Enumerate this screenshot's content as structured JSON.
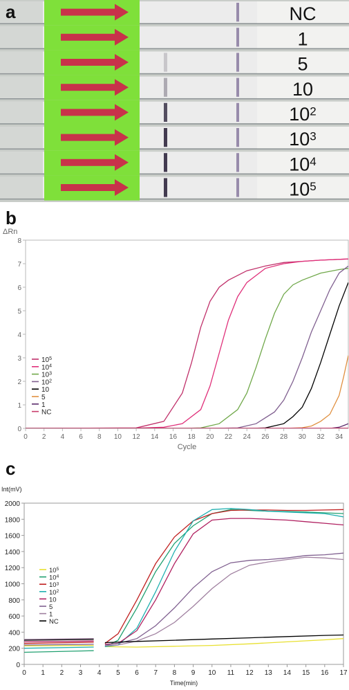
{
  "panel_a": {
    "label": "a",
    "strip_labels": [
      {
        "base": "NC",
        "exp": ""
      },
      {
        "base": "1",
        "exp": ""
      },
      {
        "base": "5",
        "exp": ""
      },
      {
        "base": "10",
        "exp": ""
      },
      {
        "base": "10",
        "exp": "2"
      },
      {
        "base": "10",
        "exp": "3"
      },
      {
        "base": "10",
        "exp": "4"
      },
      {
        "base": "10",
        "exp": "5"
      }
    ],
    "test_line_intensity": [
      0,
      0,
      0.2,
      0.35,
      0.85,
      0.95,
      0.95,
      0.95
    ],
    "colors": {
      "pad": "#7fe03a",
      "arrow": "#c8324a",
      "strip": "#ececec"
    }
  },
  "panel_b": {
    "label": "b",
    "chart_data": {
      "type": "line",
      "ylabel": "ΔRn",
      "xlabel": "Cycle",
      "xlim": [
        0,
        35
      ],
      "ylim": [
        0,
        8
      ],
      "xticks": [
        0,
        2,
        4,
        6,
        8,
        10,
        12,
        14,
        16,
        18,
        20,
        22,
        24,
        26,
        28,
        30,
        32,
        34
      ],
      "yticks": [
        0,
        1,
        2,
        3,
        4,
        5,
        6,
        7,
        8
      ],
      "grid": false,
      "legend_position": "left",
      "series": [
        {
          "name": "10",
          "exp": "5",
          "color": "#c0306a",
          "points": [
            [
              0,
              0
            ],
            [
              12,
              0.02
            ],
            [
              15,
              0.3
            ],
            [
              17,
              1.5
            ],
            [
              18,
              2.8
            ],
            [
              19,
              4.3
            ],
            [
              20,
              5.4
            ],
            [
              21,
              6.0
            ],
            [
              22,
              6.3
            ],
            [
              24,
              6.7
            ],
            [
              26,
              6.9
            ],
            [
              28,
              7.05
            ],
            [
              30,
              7.1
            ],
            [
              32,
              7.15
            ],
            [
              35,
              7.2
            ]
          ]
        },
        {
          "name": "10",
          "exp": "4",
          "color": "#e0307a",
          "points": [
            [
              0,
              0
            ],
            [
              12,
              0.01
            ],
            [
              15,
              0.05
            ],
            [
              17,
              0.2
            ],
            [
              19,
              0.8
            ],
            [
              20,
              1.8
            ],
            [
              21,
              3.2
            ],
            [
              22,
              4.6
            ],
            [
              23,
              5.6
            ],
            [
              24,
              6.2
            ],
            [
              25,
              6.5
            ],
            [
              26,
              6.8
            ],
            [
              28,
              7.0
            ],
            [
              30,
              7.1
            ],
            [
              32,
              7.15
            ],
            [
              35,
              7.2
            ]
          ]
        },
        {
          "name": "10",
          "exp": "3",
          "color": "#70a84a",
          "points": [
            [
              0,
              0
            ],
            [
              17,
              0
            ],
            [
              19,
              0.02
            ],
            [
              21,
              0.2
            ],
            [
              23,
              0.8
            ],
            [
              24,
              1.5
            ],
            [
              25,
              2.6
            ],
            [
              26,
              3.8
            ],
            [
              27,
              4.9
            ],
            [
              28,
              5.7
            ],
            [
              29,
              6.1
            ],
            [
              30,
              6.3
            ],
            [
              32,
              6.6
            ],
            [
              34,
              6.75
            ],
            [
              35,
              6.8
            ]
          ]
        },
        {
          "name": "10",
          "exp": "2",
          "color": "#806090",
          "points": [
            [
              0,
              0
            ],
            [
              20,
              0
            ],
            [
              23,
              0.02
            ],
            [
              25,
              0.2
            ],
            [
              27,
              0.7
            ],
            [
              28,
              1.2
            ],
            [
              29,
              2.0
            ],
            [
              30,
              3.0
            ],
            [
              31,
              4.1
            ],
            [
              32,
              5.0
            ],
            [
              33,
              5.9
            ],
            [
              34,
              6.6
            ],
            [
              35,
              6.9
            ]
          ]
        },
        {
          "name": "10",
          "exp": "",
          "color": "#000000",
          "points": [
            [
              0,
              0
            ],
            [
              24,
              0
            ],
            [
              26,
              0.02
            ],
            [
              28,
              0.2
            ],
            [
              29,
              0.5
            ],
            [
              30,
              0.9
            ],
            [
              31,
              1.7
            ],
            [
              32,
              2.8
            ],
            [
              33,
              4.0
            ],
            [
              34,
              5.2
            ],
            [
              35,
              6.2
            ]
          ]
        },
        {
          "name": "5",
          "exp": "",
          "color": "#e09040",
          "points": [
            [
              0,
              0
            ],
            [
              28,
              0
            ],
            [
              30,
              0.03
            ],
            [
              31,
              0.1
            ],
            [
              32,
              0.3
            ],
            [
              33,
              0.6
            ],
            [
              34,
              1.4
            ],
            [
              34.5,
              2.2
            ],
            [
              35,
              3.1
            ]
          ]
        },
        {
          "name": "1",
          "exp": "",
          "color": "#5a2a6a",
          "points": [
            [
              0,
              0
            ],
            [
              33,
              0
            ],
            [
              34,
              0.05
            ],
            [
              34.5,
              0.12
            ],
            [
              35,
              0.2
            ]
          ]
        },
        {
          "name": "NC",
          "exp": "",
          "color": "#c83a6a",
          "points": [
            [
              0,
              0
            ],
            [
              35,
              0.01
            ]
          ]
        }
      ]
    }
  },
  "panel_c": {
    "label": "c",
    "chart_data": {
      "type": "line",
      "ylabel": "Int(mV)",
      "xlabel": "Time(min)",
      "xlim": [
        0,
        17
      ],
      "ylim": [
        0,
        2000
      ],
      "xticks": [
        0,
        1,
        2,
        3,
        4,
        5,
        6,
        7,
        8,
        9,
        10,
        11,
        12,
        13,
        14,
        15,
        16,
        17
      ],
      "yticks": [
        0,
        200,
        400,
        600,
        800,
        1000,
        1200,
        1400,
        1600,
        1800,
        2000
      ],
      "grid": false,
      "legend_position": "left",
      "series": [
        {
          "name": "10",
          "exp": "5",
          "color": "#e8e030",
          "points": [
            [
              0,
              230
            ],
            [
              3.7,
              235
            ],
            [
              null,
              null
            ],
            [
              4.3,
              220
            ],
            [
              6,
              215
            ],
            [
              8,
              225
            ],
            [
              10,
              235
            ],
            [
              12,
              255
            ],
            [
              14,
              280
            ],
            [
              16,
              305
            ],
            [
              17,
              320
            ]
          ]
        },
        {
          "name": "10",
          "exp": "4",
          "color": "#20a070",
          "points": [
            [
              0,
              150
            ],
            [
              3.7,
              170
            ],
            [
              null,
              null
            ],
            [
              4.3,
              220
            ],
            [
              5,
              300
            ],
            [
              6,
              700
            ],
            [
              7,
              1150
            ],
            [
              8,
              1500
            ],
            [
              9,
              1720
            ],
            [
              10,
              1870
            ],
            [
              11,
              1920
            ],
            [
              12,
              1910
            ],
            [
              13,
              1900
            ],
            [
              14,
              1895
            ],
            [
              15,
              1890
            ],
            [
              16,
              1880
            ],
            [
              17,
              1870
            ]
          ]
        },
        {
          "name": "10",
          "exp": "3",
          "color": "#c02020",
          "points": [
            [
              0,
              260
            ],
            [
              3.7,
              275
            ],
            [
              null,
              null
            ],
            [
              4.3,
              260
            ],
            [
              5,
              380
            ],
            [
              6,
              800
            ],
            [
              7,
              1250
            ],
            [
              8,
              1580
            ],
            [
              9,
              1780
            ],
            [
              10,
              1870
            ],
            [
              11,
              1910
            ],
            [
              12,
              1915
            ],
            [
              13,
              1915
            ],
            [
              14,
              1910
            ],
            [
              15,
              1910
            ],
            [
              16,
              1915
            ],
            [
              17,
              1920
            ]
          ]
        },
        {
          "name": "10",
          "exp": "2",
          "color": "#20b0b0",
          "points": [
            [
              0,
              200
            ],
            [
              3.7,
              215
            ],
            [
              null,
              null
            ],
            [
              4.3,
              220
            ],
            [
              5,
              240
            ],
            [
              6,
              450
            ],
            [
              7,
              900
            ],
            [
              8,
              1400
            ],
            [
              9,
              1780
            ],
            [
              10,
              1920
            ],
            [
              11,
              1935
            ],
            [
              12,
              1920
            ],
            [
              13,
              1900
            ],
            [
              14,
              1890
            ],
            [
              15,
              1880
            ],
            [
              16,
              1870
            ],
            [
              17,
              1830
            ]
          ]
        },
        {
          "name": "10",
          "exp": "",
          "color": "#b02060",
          "points": [
            [
              0,
              280
            ],
            [
              3.7,
              290
            ],
            [
              null,
              null
            ],
            [
              4.3,
              250
            ],
            [
              5,
              260
            ],
            [
              6,
              420
            ],
            [
              7,
              800
            ],
            [
              8,
              1250
            ],
            [
              9,
              1620
            ],
            [
              10,
              1790
            ],
            [
              11,
              1810
            ],
            [
              12,
              1810
            ],
            [
              13,
              1800
            ],
            [
              14,
              1790
            ],
            [
              15,
              1770
            ],
            [
              16,
              1750
            ],
            [
              17,
              1730
            ]
          ]
        },
        {
          "name": "5",
          "exp": "",
          "color": "#806090",
          "points": [
            [
              0,
              240
            ],
            [
              3.7,
              250
            ],
            [
              null,
              null
            ],
            [
              4.3,
              240
            ],
            [
              5,
              260
            ],
            [
              6,
              320
            ],
            [
              7,
              480
            ],
            [
              8,
              700
            ],
            [
              9,
              950
            ],
            [
              10,
              1150
            ],
            [
              11,
              1260
            ],
            [
              12,
              1290
            ],
            [
              13,
              1300
            ],
            [
              14,
              1320
            ],
            [
              15,
              1350
            ],
            [
              16,
              1360
            ],
            [
              17,
              1380
            ]
          ]
        },
        {
          "name": "1",
          "exp": "",
          "color": "#a080a0",
          "points": [
            [
              0,
              310
            ],
            [
              3.7,
              320
            ],
            [
              null,
              null
            ],
            [
              4.3,
              230
            ],
            [
              5,
              240
            ],
            [
              6,
              290
            ],
            [
              7,
              380
            ],
            [
              8,
              520
            ],
            [
              9,
              720
            ],
            [
              10,
              940
            ],
            [
              11,
              1120
            ],
            [
              12,
              1230
            ],
            [
              13,
              1270
            ],
            [
              14,
              1300
            ],
            [
              15,
              1330
            ],
            [
              16,
              1320
            ],
            [
              17,
              1300
            ]
          ]
        },
        {
          "name": "NC",
          "exp": "",
          "color": "#000000",
          "points": [
            [
              0,
              300
            ],
            [
              3.7,
              310
            ],
            [
              null,
              null
            ],
            [
              4.3,
              270
            ],
            [
              6,
              285
            ],
            [
              8,
              300
            ],
            [
              10,
              315
            ],
            [
              12,
              330
            ],
            [
              14,
              345
            ],
            [
              16,
              360
            ],
            [
              17,
              365
            ]
          ]
        }
      ]
    }
  }
}
